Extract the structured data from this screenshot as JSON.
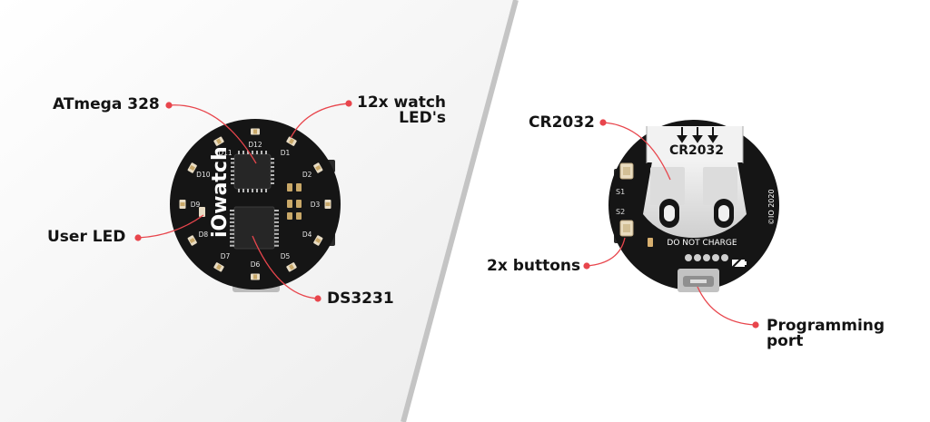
{
  "front": {
    "board_brand": "iOwatch",
    "led_labels": [
      "D1",
      "D2",
      "D3",
      "D4",
      "D5",
      "D6",
      "D7",
      "D8",
      "D9",
      "D10",
      "D11",
      "D12"
    ],
    "callouts": {
      "atmega": "ATmega 328",
      "watch_leds_line1": "12x watch",
      "watch_leds_line2": "LED's",
      "user_led": "User LED",
      "rtc": "DS3231"
    }
  },
  "back": {
    "battery_label": "CR2032",
    "warning": "DO NOT CHARGE",
    "copyright": "©IO 2020",
    "switch_labels": [
      "S1",
      "S2"
    ],
    "callouts": {
      "battery": "CR2032",
      "buttons": "2x buttons",
      "port_line1": "Programming",
      "port_line2": "port"
    }
  },
  "colors": {
    "pcb": "#151515",
    "callout_dot": "#e8454c",
    "divider": "#c4c4c4",
    "left_bg": "#f2f2f2"
  }
}
